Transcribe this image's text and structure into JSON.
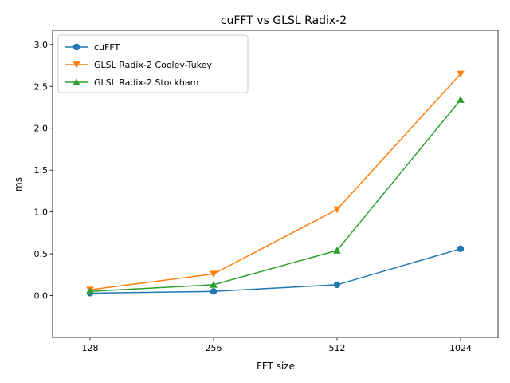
{
  "chart_data": {
    "type": "line",
    "title": "cuFFT vs GLSL Radix-2",
    "xlabel": "FFT size",
    "ylabel": "ms",
    "categories": [
      "128",
      "256",
      "512",
      "1024"
    ],
    "ylim": [
      -0.5,
      3.17
    ],
    "yticks": [
      "0.0",
      "0.5",
      "1.0",
      "1.5",
      "2.0",
      "2.5",
      "3.0"
    ],
    "ytick_values": [
      0.0,
      0.5,
      1.0,
      1.5,
      2.0,
      2.5,
      3.0
    ],
    "grid": false,
    "legend_position": "upper-left",
    "series": [
      {
        "name": "cuFFT",
        "color": "#1f77b4",
        "marker": "circle",
        "values": [
          0.03,
          0.05,
          0.13,
          0.56
        ]
      },
      {
        "name": "GLSL Radix-2 Cooley-Tukey",
        "color": "#ff7f0e",
        "marker": "triangle-down",
        "values": [
          0.07,
          0.26,
          1.03,
          2.65
        ]
      },
      {
        "name": "GLSL Radix-2 Stockham",
        "color": "#2ca02c",
        "marker": "triangle-up",
        "values": [
          0.05,
          0.13,
          0.54,
          2.34
        ]
      }
    ]
  }
}
